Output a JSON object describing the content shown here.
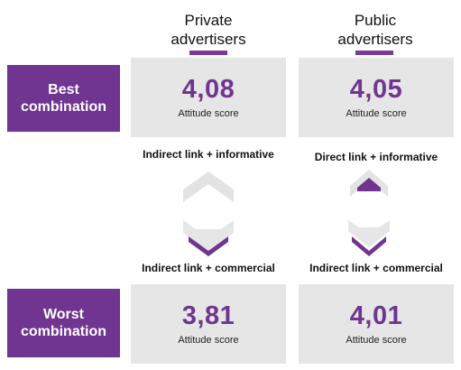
{
  "columns": [
    {
      "title_line1": "Private",
      "title_line2": "advertisers"
    },
    {
      "title_line1": "Public",
      "title_line2": "advertisers"
    }
  ],
  "rows": {
    "best": {
      "label_line1": "Best",
      "label_line2": "combination"
    },
    "worst": {
      "label_line1": "Worst",
      "label_line2": "combination"
    }
  },
  "cards": {
    "private_best": {
      "score": "4,08",
      "caption": "Attitude score"
    },
    "public_best": {
      "score": "4,05",
      "caption": "Attitude score"
    },
    "private_worst": {
      "score": "3,81",
      "caption": "Attitude score"
    },
    "public_worst": {
      "score": "4,01",
      "caption": "Attitude score"
    }
  },
  "conditions": {
    "private_best": "Indirect link + informative",
    "public_best": "Direct link + informative",
    "private_worst": "Indirect link + commercial",
    "public_worst": "Indirect link + commercial"
  },
  "colors": {
    "accent": "#6f3590",
    "card_bg": "#e6e6e6",
    "chevron_dark": "#6f3590",
    "chevron_light": "#e3e3e3"
  },
  "icons": [
    "chevron-up-icon",
    "chevron-down-icon"
  ]
}
